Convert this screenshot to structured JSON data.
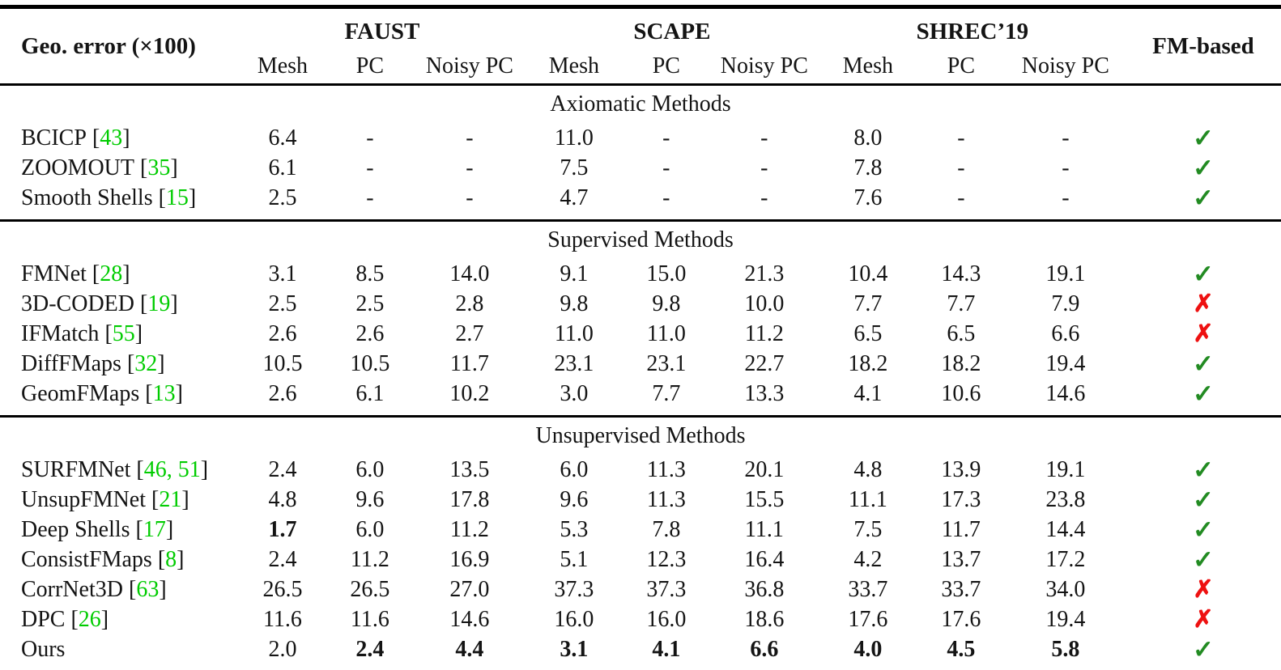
{
  "colors": {
    "citation": "#00cc00",
    "check": "#228B22",
    "cross": "#ee1111",
    "text": "#141414",
    "rule": "#000000"
  },
  "icons": {
    "check": "✓",
    "cross": "✗"
  },
  "punct": {
    "open": "[",
    "close": "]"
  },
  "header": {
    "title": "Geo. error (×100)",
    "groups": [
      "FAUST",
      "SCAPE",
      "SHREC’19"
    ],
    "subheaders": [
      "Mesh",
      "PC",
      "Noisy PC",
      "Mesh",
      "PC",
      "Noisy PC",
      "Mesh",
      "PC",
      "Noisy PC"
    ],
    "fm_label": "FM-based"
  },
  "sections": [
    {
      "label": "Axiomatic Methods",
      "rows": [
        {
          "method": "BCICP",
          "citation": "43",
          "values": [
            "6.4",
            "-",
            "-",
            "11.0",
            "-",
            "-",
            "8.0",
            "-",
            "-"
          ],
          "bold": [],
          "fm": "check"
        },
        {
          "method": "ZOOMOUT",
          "citation": "35",
          "values": [
            "6.1",
            "-",
            "-",
            "7.5",
            "-",
            "-",
            "7.8",
            "-",
            "-"
          ],
          "bold": [],
          "fm": "check"
        },
        {
          "method": "Smooth Shells",
          "citation": "15",
          "values": [
            "2.5",
            "-",
            "-",
            "4.7",
            "-",
            "-",
            "7.6",
            "-",
            "-"
          ],
          "bold": [],
          "fm": "check"
        }
      ]
    },
    {
      "label": "Supervised Methods",
      "rows": [
        {
          "method": "FMNet",
          "citation": "28",
          "values": [
            "3.1",
            "8.5",
            "14.0",
            "9.1",
            "15.0",
            "21.3",
            "10.4",
            "14.3",
            "19.1"
          ],
          "bold": [],
          "fm": "check"
        },
        {
          "method": "3D-CODED",
          "citation": "19",
          "values": [
            "2.5",
            "2.5",
            "2.8",
            "9.8",
            "9.8",
            "10.0",
            "7.7",
            "7.7",
            "7.9"
          ],
          "bold": [],
          "fm": "cross"
        },
        {
          "method": "IFMatch",
          "citation": "55",
          "values": [
            "2.6",
            "2.6",
            "2.7",
            "11.0",
            "11.0",
            "11.2",
            "6.5",
            "6.5",
            "6.6"
          ],
          "bold": [],
          "fm": "cross"
        },
        {
          "method": "DiffFMaps",
          "citation": "32",
          "values": [
            "10.5",
            "10.5",
            "11.7",
            "23.1",
            "23.1",
            "22.7",
            "18.2",
            "18.2",
            "19.4"
          ],
          "bold": [],
          "fm": "check"
        },
        {
          "method": "GeomFMaps",
          "citation": "13",
          "values": [
            "2.6",
            "6.1",
            "10.2",
            "3.0",
            "7.7",
            "13.3",
            "4.1",
            "10.6",
            "14.6"
          ],
          "bold": [],
          "fm": "check"
        }
      ]
    },
    {
      "label": "Unsupervised Methods",
      "rows": [
        {
          "method": "SURFMNet",
          "citation": "46, 51",
          "values": [
            "2.4",
            "6.0",
            "13.5",
            "6.0",
            "11.3",
            "20.1",
            "4.8",
            "13.9",
            "19.1"
          ],
          "bold": [],
          "fm": "check"
        },
        {
          "method": "UnsupFMNet",
          "citation": "21",
          "values": [
            "4.8",
            "9.6",
            "17.8",
            "9.6",
            "11.3",
            "15.5",
            "11.1",
            "17.3",
            "23.8"
          ],
          "bold": [],
          "fm": "check"
        },
        {
          "method": "Deep Shells",
          "citation": "17",
          "values": [
            "1.7",
            "6.0",
            "11.2",
            "5.3",
            "7.8",
            "11.1",
            "7.5",
            "11.7",
            "14.4"
          ],
          "bold": [
            0
          ],
          "fm": "check"
        },
        {
          "method": "ConsistFMaps",
          "citation": "8",
          "values": [
            "2.4",
            "11.2",
            "16.9",
            "5.1",
            "12.3",
            "16.4",
            "4.2",
            "13.7",
            "17.2"
          ],
          "bold": [],
          "fm": "check"
        },
        {
          "method": "CorrNet3D",
          "citation": "63",
          "values": [
            "26.5",
            "26.5",
            "27.0",
            "37.3",
            "37.3",
            "36.8",
            "33.7",
            "33.7",
            "34.0"
          ],
          "bold": [],
          "fm": "cross"
        },
        {
          "method": "DPC",
          "citation": "26",
          "values": [
            "11.6",
            "11.6",
            "14.6",
            "16.0",
            "16.0",
            "18.6",
            "17.6",
            "17.6",
            "19.4"
          ],
          "bold": [],
          "fm": "cross"
        },
        {
          "method": "Ours",
          "citation": "",
          "values": [
            "2.0",
            "2.4",
            "4.4",
            "3.1",
            "4.1",
            "6.6",
            "4.0",
            "4.5",
            "5.8"
          ],
          "bold": [
            1,
            2,
            3,
            4,
            5,
            6,
            7,
            8
          ],
          "fm": "check"
        }
      ]
    }
  ]
}
